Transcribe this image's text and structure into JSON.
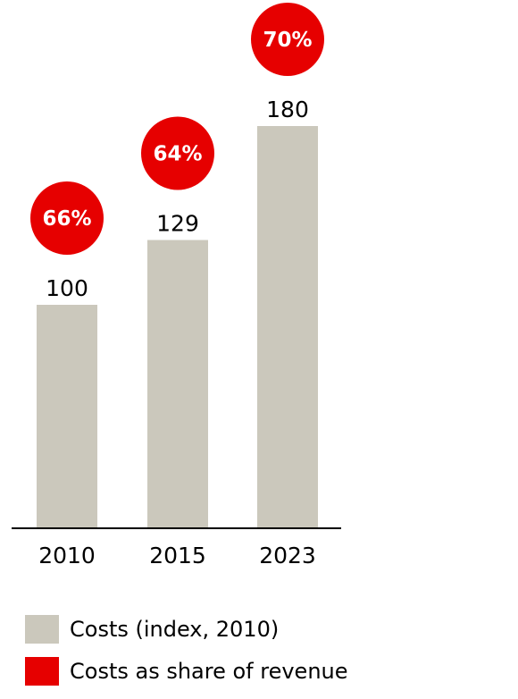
{
  "colors": {
    "bar": "#cbc8bc",
    "share": "#e60000",
    "axis": "#000000"
  },
  "chart_data": {
    "type": "bar",
    "categories": [
      "2010",
      "2015",
      "2023"
    ],
    "series": [
      {
        "name": "Costs (index, 2010)",
        "values": [
          100,
          129,
          180
        ],
        "labels": [
          "100",
          "129",
          "180"
        ]
      },
      {
        "name": "Costs as share of revenue",
        "values": [
          66,
          64,
          70
        ],
        "labels": [
          "66%",
          "64%",
          "70%"
        ]
      }
    ],
    "title": "",
    "xlabel": "",
    "ylabel": "",
    "ylim": [
      0,
      200
    ],
    "grid": false,
    "legend_position": "bottom-left"
  },
  "legend": {
    "items": [
      {
        "label": "Costs (index, 2010)"
      },
      {
        "label": "Costs as share of revenue"
      }
    ]
  }
}
